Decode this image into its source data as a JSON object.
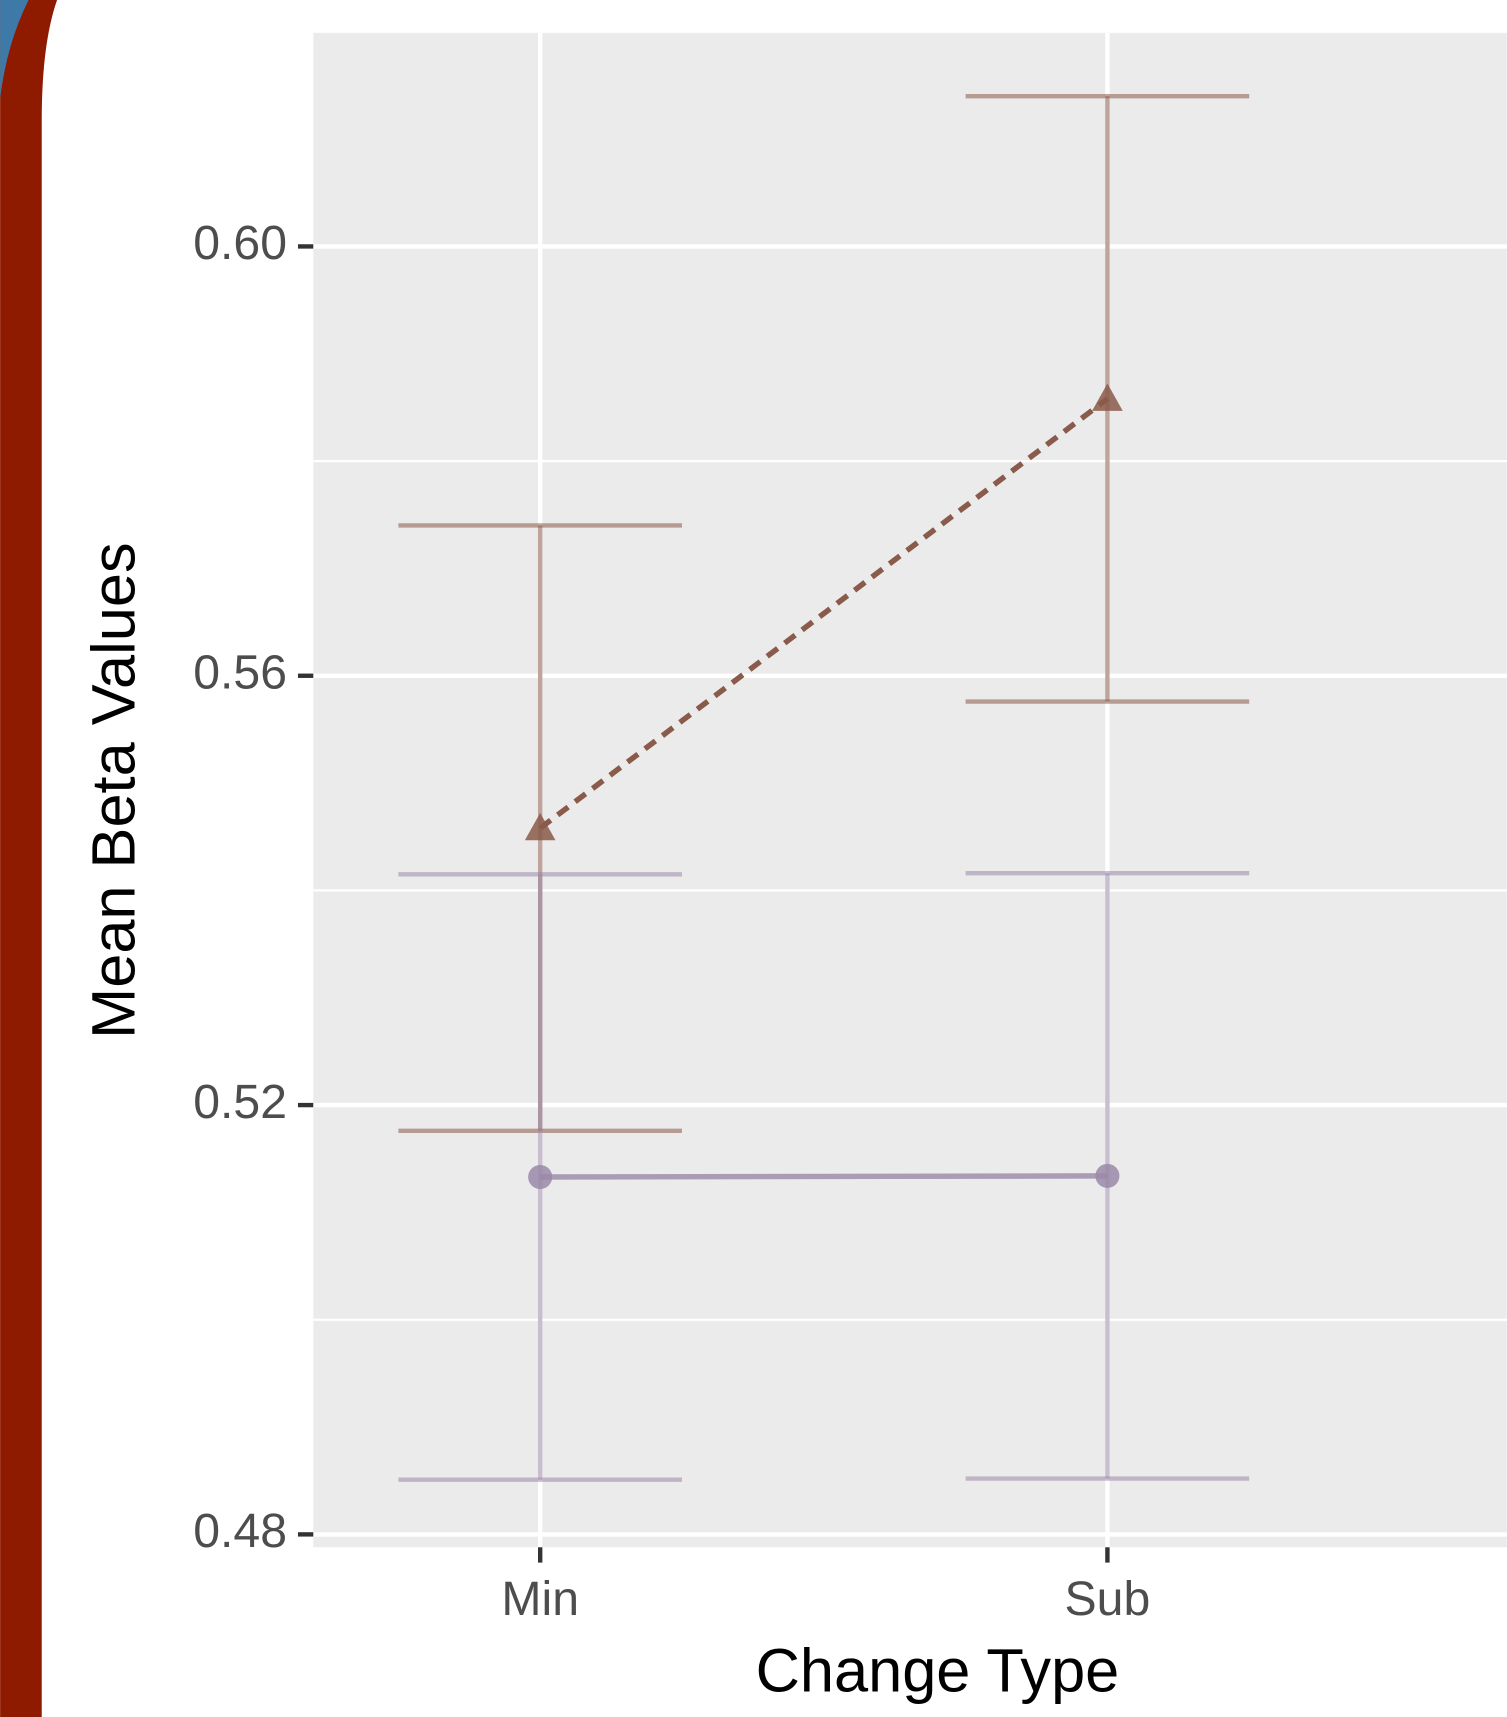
{
  "chart_data": {
    "type": "line",
    "x_label": "Change Type",
    "y_label": "Mean Beta Values",
    "categories": [
      "Min",
      "Sub"
    ],
    "series": [
      {
        "color": "#8a5a4a",
        "marker": "triangle",
        "linestyle": "dotted",
        "values": [
          0.5458,
          0.5858
        ],
        "errors": [
          0.0282,
          0.0282
        ]
      },
      {
        "color": "#9a88a8",
        "marker": "circle",
        "linestyle": "solid",
        "values": [
          0.5133,
          0.5134
        ],
        "errors": [
          0.0282,
          0.0282
        ]
      }
    ],
    "ylim": [
      0.4788,
      0.6199
    ],
    "yticks": [
      {
        "value": 0.48,
        "label": "0.48"
      },
      {
        "value": 0.52,
        "label": "0.52"
      },
      {
        "value": 0.56,
        "label": "0.56"
      },
      {
        "value": 0.6,
        "label": "0.60"
      }
    ],
    "y_minor_ticks": [
      0.5,
      0.54,
      0.58
    ],
    "grid": true
  }
}
